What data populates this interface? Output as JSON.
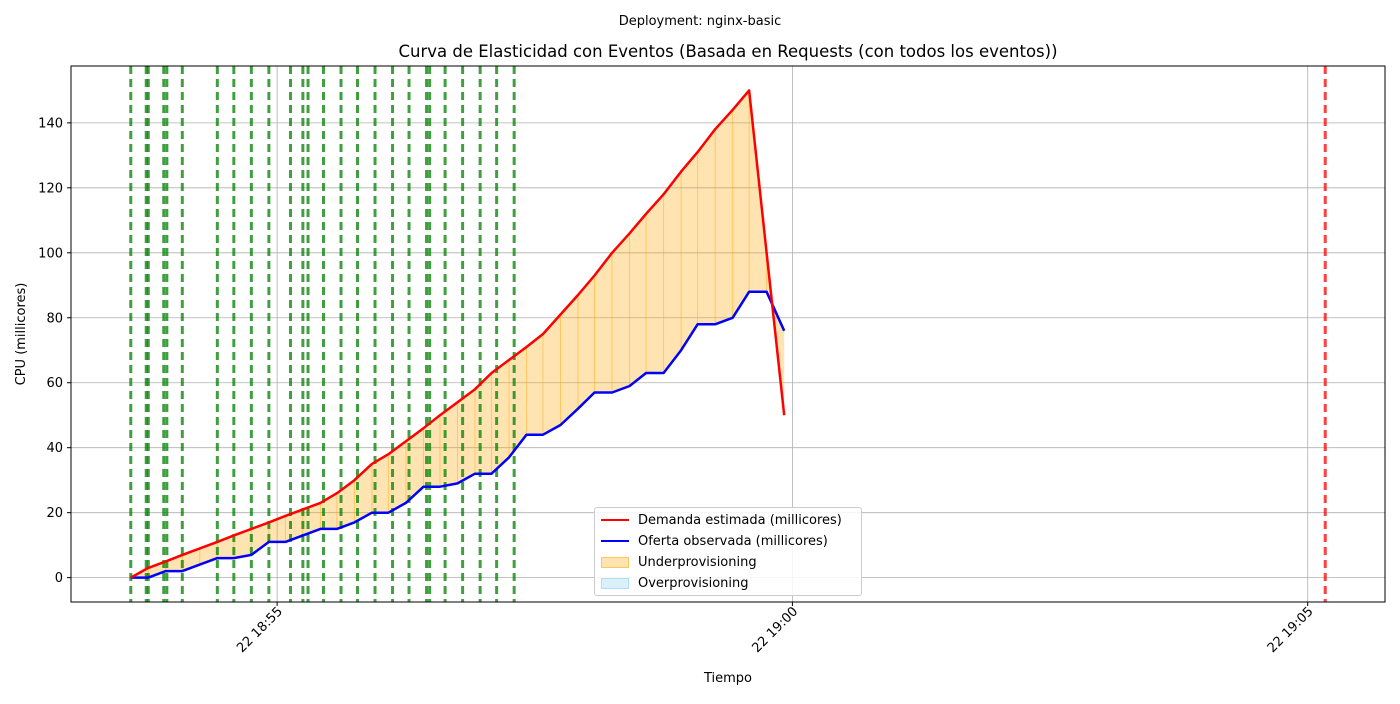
{
  "suptitle": "Deployment: nginx-basic",
  "chart_data": {
    "type": "line",
    "title": "Curva de Elasticidad con Eventos (Basada en Requests (con todos los eventos))",
    "xlabel": "Tiempo",
    "ylabel": "CPU (millicores)",
    "xlim_minutes": [
      -2.0,
      10.75
    ],
    "x_reference": "2024-01-22 18:55",
    "ylim": [
      -7.5,
      157.5
    ],
    "grid": true,
    "legend_placement": "lower center",
    "yticks": [
      0,
      20,
      40,
      60,
      80,
      100,
      120,
      140
    ],
    "xticks": [
      {
        "minute": 0,
        "label": "22 18:55"
      },
      {
        "minute": 5,
        "label": "22 19:00"
      },
      {
        "minute": 10,
        "label": "22 19:05"
      }
    ],
    "colors": {
      "demand": "#ff0000",
      "supply": "#0000ff",
      "under": "#ffa500",
      "over": "#87ceeb",
      "event_green": "#008000",
      "event_red": "#ff0000"
    },
    "series": [
      {
        "name": "Demanda estimada (millicores)",
        "x": [
          -1.42,
          -1.25,
          -1.08,
          -0.92,
          -0.75,
          -0.58,
          -0.42,
          -0.25,
          -0.08,
          0.08,
          0.25,
          0.42,
          0.58,
          0.75,
          0.92,
          1.08,
          1.25,
          1.42,
          1.58,
          1.75,
          1.92,
          2.08,
          2.25,
          2.42,
          2.58,
          2.75,
          2.92,
          3.08,
          3.25,
          3.42,
          3.58,
          3.75,
          3.92,
          4.08,
          4.25,
          4.42,
          4.58,
          4.75,
          4.92
        ],
        "values": [
          0,
          3,
          5,
          7,
          9,
          11,
          13,
          15,
          17,
          19,
          21,
          23,
          26,
          30,
          35,
          38,
          42,
          46,
          50,
          54,
          58,
          63,
          67,
          71,
          75,
          81,
          87,
          93,
          100,
          106,
          112,
          118,
          125,
          131,
          138,
          144,
          150,
          100,
          50
        ]
      },
      {
        "name": "Oferta observada (millicores)",
        "x": [
          -1.42,
          -1.25,
          -1.08,
          -0.92,
          -0.75,
          -0.58,
          -0.42,
          -0.25,
          -0.08,
          0.08,
          0.25,
          0.42,
          0.58,
          0.75,
          0.92,
          1.08,
          1.25,
          1.42,
          1.58,
          1.75,
          1.92,
          2.08,
          2.25,
          2.42,
          2.58,
          2.75,
          2.92,
          3.08,
          3.25,
          3.42,
          3.58,
          3.75,
          3.92,
          4.08,
          4.25,
          4.42,
          4.58,
          4.75,
          4.92
        ],
        "values": [
          0,
          0,
          2,
          2,
          4,
          6,
          6,
          7,
          11,
          11,
          13,
          15,
          15,
          17,
          20,
          20,
          23,
          28,
          28,
          29,
          32,
          32,
          37,
          44,
          44,
          47,
          52,
          57,
          57,
          59,
          63,
          63,
          70,
          78,
          78,
          80,
          88,
          88,
          76
        ]
      }
    ],
    "legend": [
      {
        "label": "Demanda estimada (millicores)",
        "kind": "line",
        "color": "#ff0000"
      },
      {
        "label": "Oferta observada (millicores)",
        "kind": "line",
        "color": "#0000ff"
      },
      {
        "label": "Underprovisioning",
        "kind": "patch",
        "color": "#ffa500"
      },
      {
        "label": "Overprovisioning",
        "kind": "patch",
        "color": "#87ceeb"
      }
    ],
    "events": [
      {
        "x": -1.42,
        "color": "green"
      },
      {
        "x": -1.27,
        "color": "green"
      },
      {
        "x": -1.25,
        "color": "green"
      },
      {
        "x": -1.1,
        "color": "green"
      },
      {
        "x": -1.07,
        "color": "green"
      },
      {
        "x": -0.92,
        "color": "green"
      },
      {
        "x": -0.58,
        "color": "green"
      },
      {
        "x": -0.42,
        "color": "green"
      },
      {
        "x": -0.25,
        "color": "green"
      },
      {
        "x": -0.08,
        "color": "green"
      },
      {
        "x": 0.13,
        "color": "green"
      },
      {
        "x": 0.25,
        "color": "green"
      },
      {
        "x": 0.3,
        "color": "green"
      },
      {
        "x": 0.45,
        "color": "green"
      },
      {
        "x": 0.62,
        "color": "green"
      },
      {
        "x": 0.78,
        "color": "green"
      },
      {
        "x": 0.95,
        "color": "green"
      },
      {
        "x": 1.12,
        "color": "green"
      },
      {
        "x": 1.28,
        "color": "green"
      },
      {
        "x": 1.45,
        "color": "green"
      },
      {
        "x": 1.48,
        "color": "green"
      },
      {
        "x": 1.63,
        "color": "green"
      },
      {
        "x": 1.8,
        "color": "green"
      },
      {
        "x": 1.97,
        "color": "green"
      },
      {
        "x": 2.13,
        "color": "green"
      },
      {
        "x": 2.3,
        "color": "green"
      },
      {
        "x": 10.17,
        "color": "red"
      }
    ]
  }
}
